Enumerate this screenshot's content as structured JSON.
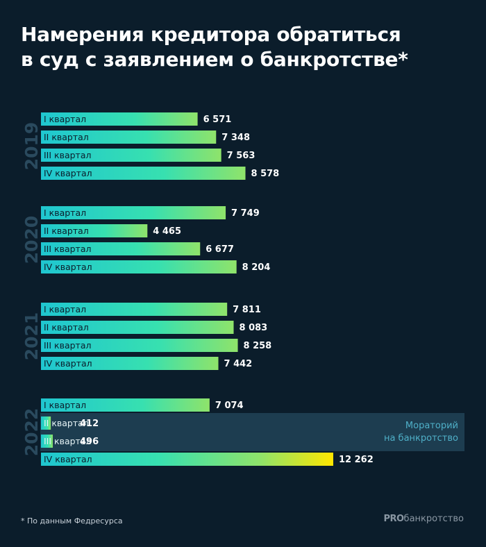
{
  "title_lines": [
    "Намерения кредитора обратиться",
    "в суд с заявлением о банкротстве*"
  ],
  "footnote": "* По данным Федресурса",
  "brand": {
    "bold": "PRO",
    "rest": "банкротство"
  },
  "moratorium_label_lines": [
    "Мораторий",
    "на банкротство"
  ],
  "colors": {
    "background": "#0b1d2b",
    "bar_start": "#1fc6d0",
    "bar_mid": "#37e0b0",
    "bar_end": "#8fe36a",
    "bar_max_end": "#ffe600",
    "year_label": "#2a4a5e",
    "moratorium_band": "#1d3d50",
    "moratorium_text": "#4fb0c8"
  },
  "chart_data": {
    "type": "bar",
    "orientation": "horizontal",
    "groups": [
      {
        "year": "2019",
        "items": [
          {
            "label": "I квартал",
            "value": 6571,
            "value_label": "6 571"
          },
          {
            "label": "II квартал",
            "value": 7348,
            "value_label": "7 348"
          },
          {
            "label": "III квартал",
            "value": 7563,
            "value_label": "7 563"
          },
          {
            "label": "IV квартал",
            "value": 8578,
            "value_label": "8 578"
          }
        ]
      },
      {
        "year": "2020",
        "items": [
          {
            "label": "I квартал",
            "value": 7749,
            "value_label": "7 749"
          },
          {
            "label": "II квартал",
            "value": 4465,
            "value_label": "4 465"
          },
          {
            "label": "III квартал",
            "value": 6677,
            "value_label": "6 677"
          },
          {
            "label": "IV квартал",
            "value": 8204,
            "value_label": "8 204"
          }
        ]
      },
      {
        "year": "2021",
        "items": [
          {
            "label": "I квартал",
            "value": 7811,
            "value_label": "7 811"
          },
          {
            "label": "II квартал",
            "value": 8083,
            "value_label": "8 083"
          },
          {
            "label": "III квартал",
            "value": 8258,
            "value_label": "8 258"
          },
          {
            "label": "IV квартал",
            "value": 7442,
            "value_label": "7 442"
          }
        ]
      },
      {
        "year": "2022",
        "items": [
          {
            "label": "I квартал",
            "value": 7074,
            "value_label": "7 074"
          },
          {
            "label": "II квартал",
            "value": 412,
            "value_label": "412",
            "moratorium": true
          },
          {
            "label": "III квартал",
            "value": 496,
            "value_label": "496",
            "moratorium": true
          },
          {
            "label": "IV квартал",
            "value": 12262,
            "value_label": "12 262"
          }
        ]
      }
    ]
  }
}
